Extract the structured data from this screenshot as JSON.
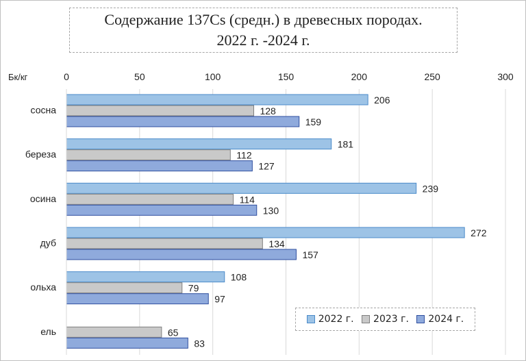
{
  "chart_data": {
    "type": "bar",
    "orientation": "horizontal",
    "title_line1": "Содержание 137Cs (средн.) в древесных породах.",
    "title_line2": "2022 г. -2024 г.",
    "unit_label": "Бк/кг",
    "categories": [
      "сосна",
      "береза",
      "осина",
      "дуб",
      "ольха",
      "ель"
    ],
    "series": [
      {
        "name": "2022 г.",
        "values": [
          206,
          181,
          239,
          272,
          108,
          null
        ],
        "color": "#9dc3e6"
      },
      {
        "name": "2023 г.",
        "values": [
          128,
          112,
          114,
          134,
          79,
          65
        ],
        "color": "#c9c9c9"
      },
      {
        "name": "2024 г.",
        "values": [
          159,
          127,
          130,
          157,
          97,
          83
        ],
        "color": "#8faadc"
      }
    ],
    "xlim": [
      0,
      300
    ],
    "ticks": [
      "0",
      "50",
      "100",
      "150",
      "200",
      "250",
      "300"
    ],
    "grid": true,
    "legend_position": "bottom-right"
  }
}
